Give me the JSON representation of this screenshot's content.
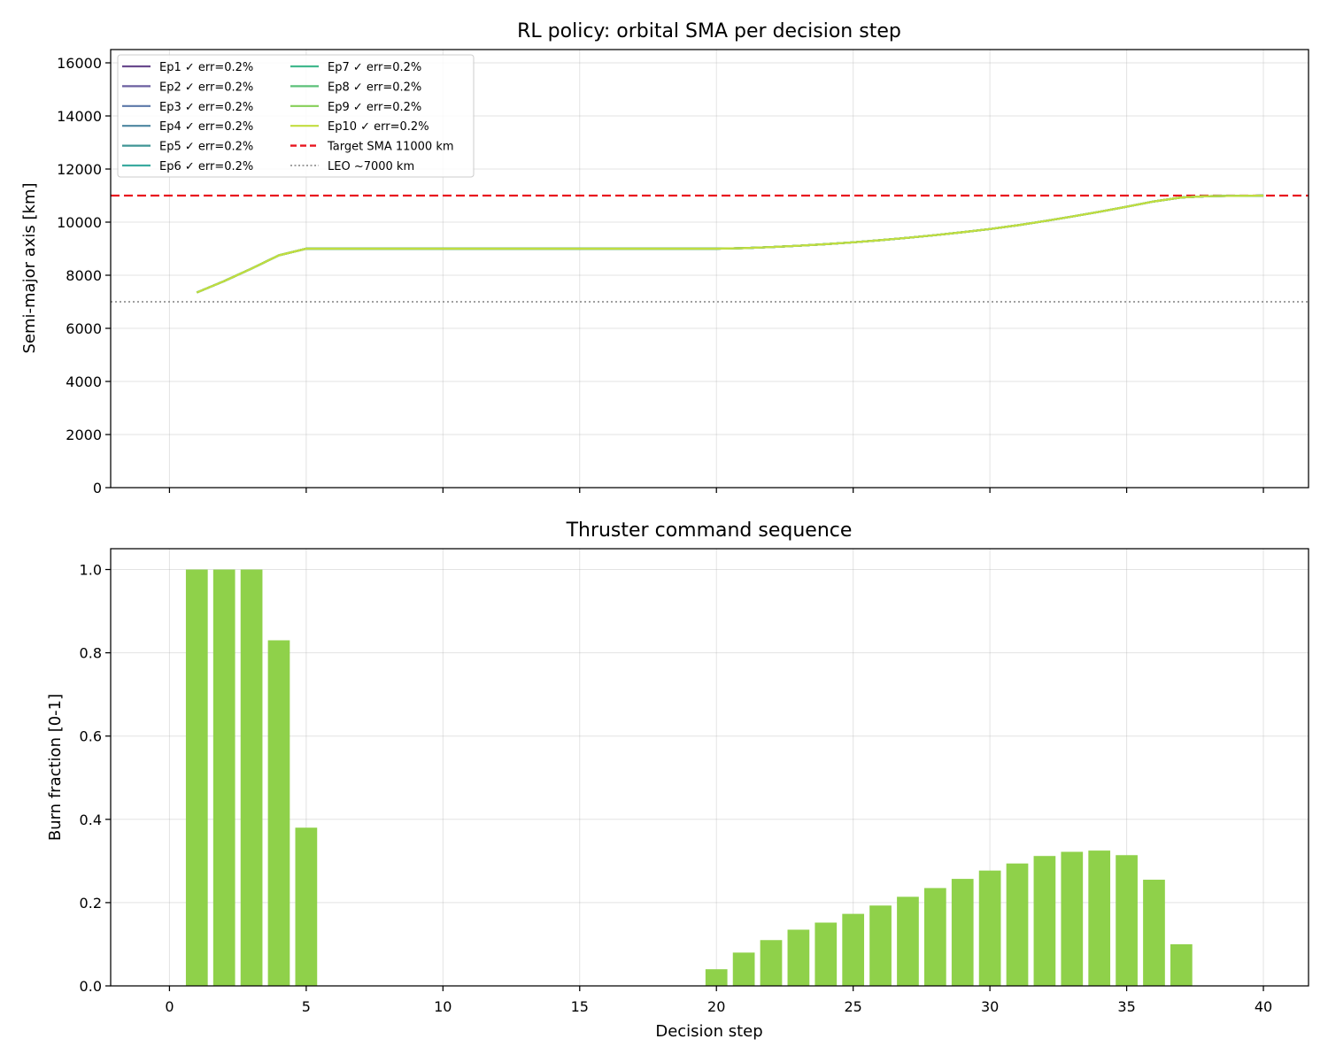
{
  "chart_data": [
    {
      "type": "line",
      "title": "RL policy: orbital SMA per decision step",
      "xlabel": "",
      "ylabel": "Semi-major axis [km]",
      "xlim": [
        -2.15,
        41.65
      ],
      "ylim": [
        0,
        16500
      ],
      "xticks": [
        0,
        5,
        10,
        15,
        20,
        25,
        30,
        35,
        40
      ],
      "yticks": [
        0,
        2000,
        4000,
        6000,
        8000,
        10000,
        12000,
        14000,
        16000
      ],
      "ytick_labels": [
        "0",
        "2000",
        "4000",
        "6000",
        "8000",
        "10000",
        "12000",
        "14000",
        "16000"
      ],
      "grid": true,
      "legend_placement": "upper-left",
      "legend_columns": 2,
      "x": [
        1,
        2,
        3,
        4,
        5,
        6,
        7,
        8,
        9,
        10,
        11,
        12,
        13,
        14,
        15,
        16,
        17,
        18,
        19,
        20,
        21,
        22,
        23,
        24,
        25,
        26,
        27,
        28,
        29,
        30,
        31,
        32,
        33,
        34,
        35,
        36,
        37,
        38,
        39,
        40
      ],
      "series": [
        {
          "name": "Ep1 ✓ err=0.2%",
          "color": "#6a4a8e",
          "values": [
            7350,
            7780,
            8250,
            8750,
            9000,
            9000,
            9000,
            9000,
            9000,
            9000,
            9000,
            9000,
            9000,
            9000,
            9000,
            9000,
            9000,
            9000,
            9000,
            9000,
            9020,
            9060,
            9110,
            9170,
            9240,
            9320,
            9410,
            9510,
            9620,
            9740,
            9880,
            10040,
            10210,
            10390,
            10580,
            10780,
            10930,
            10980,
            10990,
            11000
          ]
        },
        {
          "name": "Ep2 ✓ err=0.2%",
          "color": "#6b5fa0",
          "values": [
            7350,
            7780,
            8250,
            8750,
            9000,
            9000,
            9000,
            9000,
            9000,
            9000,
            9000,
            9000,
            9000,
            9000,
            9000,
            9000,
            9000,
            9000,
            9000,
            9000,
            9020,
            9060,
            9110,
            9170,
            9240,
            9320,
            9410,
            9510,
            9620,
            9740,
            9880,
            10040,
            10210,
            10390,
            10580,
            10780,
            10930,
            10980,
            10990,
            11000
          ]
        },
        {
          "name": "Ep3 ✓ err=0.2%",
          "color": "#5b78a8",
          "values": [
            7350,
            7780,
            8250,
            8750,
            9000,
            9000,
            9000,
            9000,
            9000,
            9000,
            9000,
            9000,
            9000,
            9000,
            9000,
            9000,
            9000,
            9000,
            9000,
            9000,
            9020,
            9060,
            9110,
            9170,
            9240,
            9320,
            9410,
            9510,
            9620,
            9740,
            9880,
            10040,
            10210,
            10390,
            10580,
            10780,
            10930,
            10980,
            10990,
            11000
          ]
        },
        {
          "name": "Ep4 ✓ err=0.2%",
          "color": "#4d86a0",
          "values": [
            7350,
            7780,
            8250,
            8750,
            9000,
            9000,
            9000,
            9000,
            9000,
            9000,
            9000,
            9000,
            9000,
            9000,
            9000,
            9000,
            9000,
            9000,
            9000,
            9000,
            9020,
            9060,
            9110,
            9170,
            9240,
            9320,
            9410,
            9510,
            9620,
            9740,
            9880,
            10040,
            10210,
            10390,
            10580,
            10780,
            10930,
            10980,
            10990,
            11000
          ]
        },
        {
          "name": "Ep5 ✓ err=0.2%",
          "color": "#3f9595",
          "values": [
            7350,
            7780,
            8250,
            8750,
            9000,
            9000,
            9000,
            9000,
            9000,
            9000,
            9000,
            9000,
            9000,
            9000,
            9000,
            9000,
            9000,
            9000,
            9000,
            9000,
            9020,
            9060,
            9110,
            9170,
            9240,
            9320,
            9410,
            9510,
            9620,
            9740,
            9880,
            10040,
            10210,
            10390,
            10580,
            10780,
            10930,
            10980,
            10990,
            11000
          ]
        },
        {
          "name": "Ep6 ✓ err=0.2%",
          "color": "#3aaba0",
          "values": [
            7350,
            7780,
            8250,
            8750,
            9000,
            9000,
            9000,
            9000,
            9000,
            9000,
            9000,
            9000,
            9000,
            9000,
            9000,
            9000,
            9000,
            9000,
            9000,
            9000,
            9020,
            9060,
            9110,
            9170,
            9240,
            9320,
            9410,
            9510,
            9620,
            9740,
            9880,
            10040,
            10210,
            10390,
            10580,
            10780,
            10930,
            10980,
            10990,
            11000
          ]
        },
        {
          "name": "Ep7 ✓ err=0.2%",
          "color": "#42b88e",
          "values": [
            7350,
            7780,
            8250,
            8750,
            9000,
            9000,
            9000,
            9000,
            9000,
            9000,
            9000,
            9000,
            9000,
            9000,
            9000,
            9000,
            9000,
            9000,
            9000,
            9000,
            9020,
            9060,
            9110,
            9170,
            9240,
            9320,
            9410,
            9510,
            9620,
            9740,
            9880,
            10040,
            10210,
            10390,
            10580,
            10780,
            10930,
            10980,
            10990,
            11000
          ]
        },
        {
          "name": "Ep8 ✓ err=0.2%",
          "color": "#5cc078",
          "values": [
            7350,
            7780,
            8250,
            8750,
            9000,
            9000,
            9000,
            9000,
            9000,
            9000,
            9000,
            9000,
            9000,
            9000,
            9000,
            9000,
            9000,
            9000,
            9000,
            9000,
            9020,
            9060,
            9110,
            9170,
            9240,
            9320,
            9410,
            9510,
            9620,
            9740,
            9880,
            10040,
            10210,
            10390,
            10580,
            10780,
            10930,
            10980,
            10990,
            11000
          ]
        },
        {
          "name": "Ep9 ✓ err=0.2%",
          "color": "#86cf58",
          "values": [
            7350,
            7780,
            8250,
            8750,
            9000,
            9000,
            9000,
            9000,
            9000,
            9000,
            9000,
            9000,
            9000,
            9000,
            9000,
            9000,
            9000,
            9000,
            9000,
            9000,
            9020,
            9060,
            9110,
            9170,
            9240,
            9320,
            9410,
            9510,
            9620,
            9740,
            9880,
            10040,
            10210,
            10390,
            10580,
            10780,
            10930,
            10980,
            10990,
            11000
          ]
        },
        {
          "name": "Ep10 ✓ err=0.2%",
          "color": "#c2dd3f",
          "values": [
            7350,
            7780,
            8250,
            8750,
            9000,
            9000,
            9000,
            9000,
            9000,
            9000,
            9000,
            9000,
            9000,
            9000,
            9000,
            9000,
            9000,
            9000,
            9000,
            9000,
            9020,
            9060,
            9110,
            9170,
            9240,
            9320,
            9410,
            9510,
            9620,
            9740,
            9880,
            10040,
            10210,
            10390,
            10580,
            10780,
            10930,
            10980,
            10990,
            11000
          ]
        }
      ],
      "reference_lines": [
        {
          "name": "Target SMA 11000 km",
          "y": 11000,
          "color": "#e8141e",
          "style": "dashed"
        },
        {
          "name": "LEO ~7000 km",
          "y": 7000,
          "color": "#808080",
          "style": "dotted"
        }
      ]
    },
    {
      "type": "bar",
      "title": "Thruster command sequence",
      "xlabel": "Decision step",
      "ylabel": "Burn fraction [0-1]",
      "xlim": [
        -2.15,
        41.65
      ],
      "ylim": [
        0,
        1.05
      ],
      "xticks": [
        0,
        5,
        10,
        15,
        20,
        25,
        30,
        35,
        40
      ],
      "yticks": [
        0,
        0.2,
        0.4,
        0.6,
        0.8,
        1.0
      ],
      "ytick_labels": [
        "0.0",
        "0.2",
        "0.4",
        "0.6",
        "0.8",
        "1.0"
      ],
      "grid": true,
      "color": "#8fd14a",
      "x": [
        1,
        2,
        3,
        4,
        5,
        6,
        7,
        8,
        9,
        10,
        11,
        12,
        13,
        14,
        15,
        16,
        17,
        18,
        19,
        20,
        21,
        22,
        23,
        24,
        25,
        26,
        27,
        28,
        29,
        30,
        31,
        32,
        33,
        34,
        35,
        36,
        37,
        38,
        39,
        40
      ],
      "values": [
        1.0,
        1.0,
        1.0,
        0.83,
        0.38,
        0,
        0,
        0,
        0,
        0,
        0,
        0,
        0,
        0,
        0,
        0,
        0,
        0,
        0,
        0.04,
        0.08,
        0.11,
        0.135,
        0.152,
        0.173,
        0.193,
        0.214,
        0.235,
        0.257,
        0.277,
        0.294,
        0.312,
        0.322,
        0.325,
        0.314,
        0.255,
        0.1,
        0,
        0,
        0
      ]
    }
  ]
}
